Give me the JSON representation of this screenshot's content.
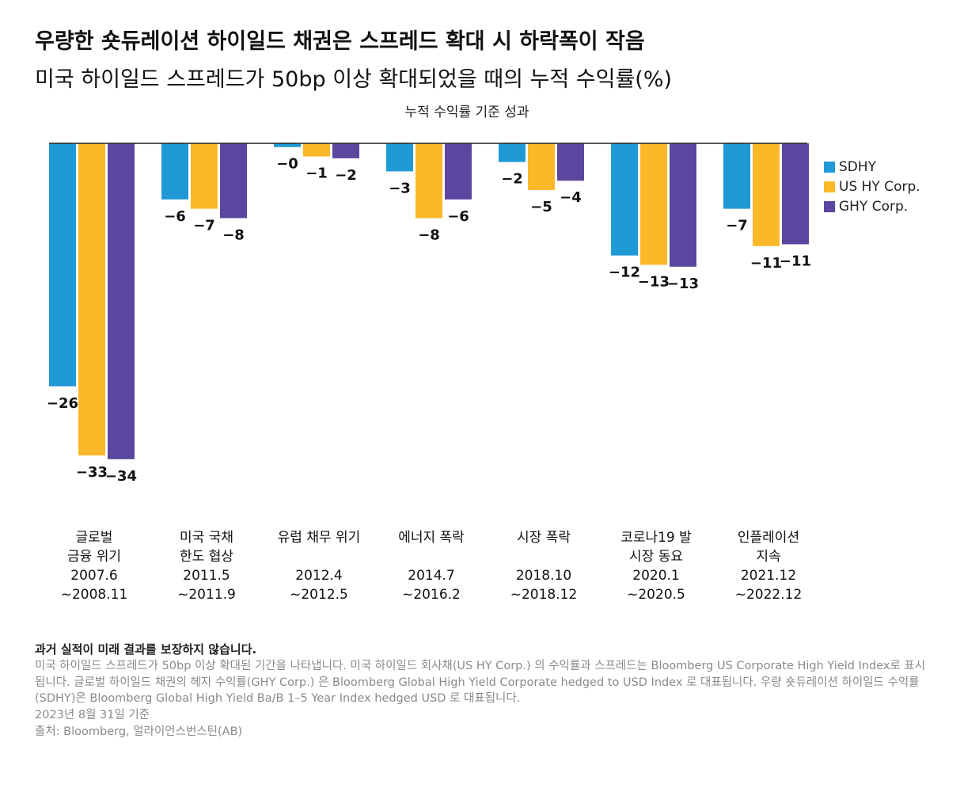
{
  "chart_data": {
    "type": "bar",
    "title": "우량한 숏듀레이션 하이일드 채권은 스프레드 확대 시 하락폭이 작음",
    "subtitle": "미국 하이일드 스프레드가 50bp 이상 확대되었을 때의 누적 수익률(%)",
    "caption": "누적 수익률 기준 성과",
    "categories": [
      [
        "글로벌",
        "금융 위기"
      ],
      [
        "미국 국채",
        "한도 협상"
      ],
      [
        "유럽 채무 위기"
      ],
      [
        "에너지 폭락"
      ],
      [
        "시장 폭락"
      ],
      [
        "코로나19 발",
        "시장 동요"
      ],
      [
        "인플레이션",
        "지속"
      ]
    ],
    "periods": [
      [
        "2007.6",
        "~2008.11"
      ],
      [
        "2011.5",
        "~2011.9"
      ],
      [
        "2012.4",
        "~2012.5"
      ],
      [
        "2014.7",
        "~2016.2"
      ],
      [
        "2018.10",
        "~2018.12"
      ],
      [
        "2020.1",
        "~2020.5"
      ],
      [
        "2021.12",
        "~2022.12"
      ]
    ],
    "series": [
      {
        "name": "SDHY",
        "color": "#1f9ad6",
        "values": [
          -26,
          -6,
          -0.4,
          -3,
          -2,
          -12,
          -7
        ],
        "value_labels": [
          "−26",
          "−6",
          "−0",
          "−3",
          "−2",
          "−12",
          "−7"
        ]
      },
      {
        "name": "US HY Corp.",
        "color": "#fbb829",
        "values": [
          -33.4,
          -7,
          -1.4,
          -8,
          -5,
          -13,
          -11
        ],
        "value_labels": [
          "−33",
          "−7",
          "−1",
          "−8",
          "−5",
          "−13",
          "−11"
        ]
      },
      {
        "name": "GHY Corp.",
        "color": "#5b46a0",
        "values": [
          -33.8,
          -8,
          -1.6,
          -6,
          -4,
          -13.2,
          -10.8
        ],
        "value_labels": [
          "−34",
          "−8",
          "−2",
          "−6",
          "−4",
          "−13",
          "−11"
        ]
      }
    ],
    "legend": "right",
    "disclaimer": "과거 실적이 미래 결과를 보장하지 않습니다.",
    "note": "미국 하이일드 스프레드가 50bp 이상 확대된 기간을 나타냅니다. 미국 하이일드 회사채(US HY Corp.) 의 수익률과 스프레드는 Bloomberg US Corporate High Yield Index로 표시됩니다. 글로벌 하이일드 채권의 헤지 수익률(GHY Corp.) 은 Bloomberg Global High Yield Corporate hedged to USD Index 로 대표됩니다. 우량 숏듀레이션 하이일드 수익률 (SDHY)은 Bloomberg Global High Yield Ba/B 1–5 Year Index hedged USD 로 대표됩니다.",
    "date_note": "2023년 8월 31일 기준",
    "source": "출처: Bloomberg, 얼라이언스번스틴(AB)"
  }
}
